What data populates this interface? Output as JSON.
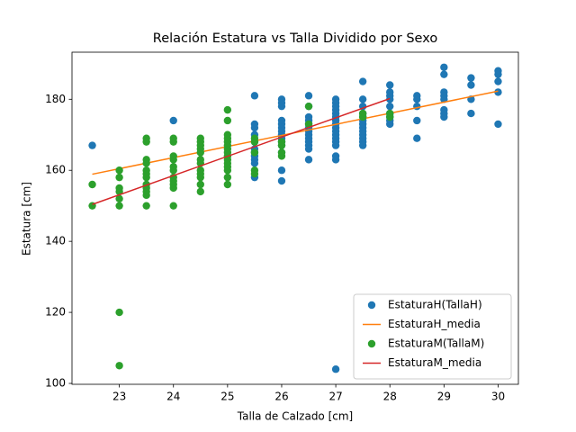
{
  "chart_data": {
    "type": "scatter",
    "title": "Relación Estatura vs Talla Dividido por Sexo",
    "x_label": "Talla de Calzado [cm]",
    "y_label": "Estatura [cm]",
    "xlim": [
      22.125,
      30.375
    ],
    "ylim": [
      99.75,
      193.25
    ],
    "xticks": [
      23,
      24,
      25,
      26,
      27,
      28,
      29,
      30
    ],
    "yticks": [
      100,
      120,
      140,
      160,
      180
    ],
    "grid": false,
    "legend_position": "lower-right",
    "series": [
      {
        "name": "EstaturaH(TallaH)",
        "color": "#1f77b4",
        "style": "points",
        "x": [
          22.5,
          24,
          25.5,
          25.5,
          25.5,
          25.5,
          25.5,
          25.5,
          25.5,
          25.5,
          25.5,
          25.5,
          25.5,
          26,
          26,
          26,
          26,
          26,
          26,
          26,
          26,
          26,
          26,
          26,
          26,
          26,
          26,
          26.5,
          26.5,
          26.5,
          26.5,
          26.5,
          26.5,
          26.5,
          26.5,
          26.5,
          26.5,
          26.5,
          26.5,
          26.5,
          27,
          27,
          27,
          27,
          27,
          27,
          27,
          27,
          27,
          27,
          27,
          27,
          27,
          27,
          27,
          27,
          27,
          27.5,
          27.5,
          27.5,
          27.5,
          27.5,
          27.5,
          27.5,
          27.5,
          27.5,
          27.5,
          27.5,
          27.5,
          27.5,
          28,
          28,
          28,
          28,
          28,
          28,
          28,
          28,
          28,
          28.5,
          28.5,
          28.5,
          28.5,
          28.5,
          29,
          29,
          29,
          29,
          29,
          29,
          29,
          29,
          29.5,
          29.5,
          29.5,
          29.5,
          30,
          30,
          30,
          30,
          30
        ],
        "values": [
          167,
          174,
          181,
          173,
          172,
          170,
          168,
          166,
          165,
          164,
          163,
          162,
          158,
          180,
          179,
          178,
          174,
          173,
          172,
          171,
          170,
          169,
          168,
          167,
          165,
          160,
          157,
          181,
          178,
          175,
          174,
          173,
          172,
          171,
          170,
          169,
          168,
          167,
          166,
          163,
          180,
          179,
          178,
          177,
          176,
          175,
          174,
          173,
          172,
          171,
          170,
          169,
          168,
          167,
          164,
          163,
          104,
          185,
          180,
          178,
          176,
          175,
          174,
          173,
          172,
          171,
          170,
          169,
          168,
          167,
          184,
          182,
          181,
          180,
          178,
          176,
          175,
          174,
          173,
          181,
          180,
          178,
          174,
          169,
          189,
          187,
          182,
          181,
          180,
          177,
          176,
          175,
          186,
          184,
          180,
          176,
          188,
          187,
          185,
          182,
          173
        ]
      },
      {
        "name": "EstaturaH_media",
        "color": "#ff7f0e",
        "style": "line",
        "x": [
          22.5,
          30
        ],
        "values": [
          158.9,
          182.3
        ]
      },
      {
        "name": "EstaturaM(TallaM)",
        "color": "#2ca02c",
        "style": "points",
        "x": [
          22.5,
          22.5,
          23,
          23,
          23,
          23,
          23,
          23,
          23,
          23,
          23.5,
          23.5,
          23.5,
          23.5,
          23.5,
          23.5,
          23.5,
          23.5,
          23.5,
          23.5,
          23.5,
          23.5,
          24,
          24,
          24,
          24,
          24,
          24,
          24,
          24,
          24,
          24,
          24,
          24.5,
          24.5,
          24.5,
          24.5,
          24.5,
          24.5,
          24.5,
          24.5,
          24.5,
          24.5,
          24.5,
          24.5,
          25,
          25,
          25,
          25,
          25,
          25,
          25,
          25,
          25,
          25,
          25,
          25,
          25,
          25,
          25,
          25.5,
          25.5,
          25.5,
          25.5,
          25.5,
          26,
          26,
          26,
          26,
          26.5,
          26.5,
          27.5,
          27.5,
          28,
          28
        ],
        "values": [
          156,
          150,
          160,
          158,
          155,
          154,
          152,
          150,
          120,
          105,
          169,
          168,
          163,
          162,
          160,
          159,
          158,
          156,
          155,
          154,
          153,
          150,
          169,
          168,
          164,
          163,
          161,
          160,
          158,
          157,
          156,
          155,
          150,
          169,
          168,
          167,
          166,
          165,
          163,
          162,
          160,
          159,
          158,
          156,
          154,
          177,
          174,
          170,
          169,
          168,
          167,
          166,
          165,
          164,
          163,
          162,
          161,
          160,
          158,
          156,
          169,
          168,
          165,
          160,
          159,
          168,
          167,
          165,
          164,
          178,
          173,
          176,
          175,
          176,
          175
        ]
      },
      {
        "name": "EstaturaM_media",
        "color": "#d62728",
        "style": "line",
        "x": [
          22.5,
          28
        ],
        "values": [
          150.4,
          180.2
        ]
      }
    ]
  }
}
